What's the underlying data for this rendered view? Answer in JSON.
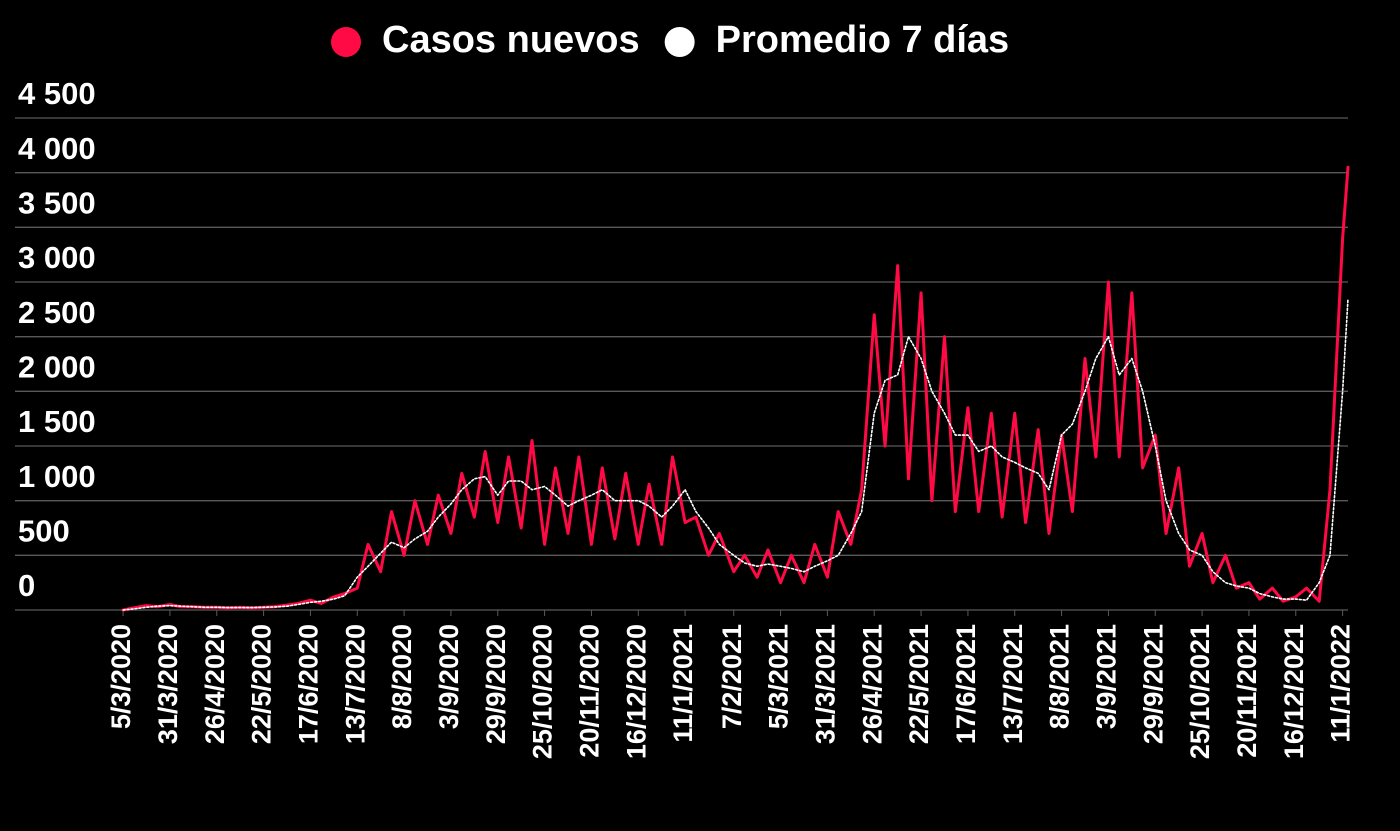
{
  "chart_data": {
    "type": "line",
    "x": [
      "5/3/2020",
      "11/3/2020",
      "18/3/2020",
      "24/3/2020",
      "31/3/2020",
      "6/4/2020",
      "13/4/2020",
      "19/4/2020",
      "26/4/2020",
      "2/5/2020",
      "9/5/2020",
      "15/5/2020",
      "22/5/2020",
      "28/5/2020",
      "4/6/2020",
      "10/6/2020",
      "17/6/2020",
      "23/6/2020",
      "30/6/2020",
      "6/7/2020",
      "13/7/2020",
      "19/7/2020",
      "26/7/2020",
      "1/8/2020",
      "8/8/2020",
      "14/8/2020",
      "21/8/2020",
      "27/8/2020",
      "3/9/2020",
      "9/9/2020",
      "16/9/2020",
      "22/9/2020",
      "29/9/2020",
      "5/10/2020",
      "12/10/2020",
      "18/10/2020",
      "25/10/2020",
      "31/10/2020",
      "7/11/2020",
      "13/11/2020",
      "20/11/2020",
      "26/11/2020",
      "3/12/2020",
      "9/12/2020",
      "16/12/2020",
      "22/12/2020",
      "29/12/2020",
      "4/1/2021",
      "11/1/2021",
      "17/1/2021",
      "24/1/2021",
      "30/1/2021",
      "7/2/2021",
      "13/2/2021",
      "20/2/2021",
      "26/2/2021",
      "5/3/2021",
      "11/3/2021",
      "18/3/2021",
      "24/3/2021",
      "31/3/2021",
      "6/4/2021",
      "13/4/2021",
      "19/4/2021",
      "26/4/2021",
      "2/5/2021",
      "9/5/2021",
      "15/5/2021",
      "22/5/2021",
      "28/5/2021",
      "4/6/2021",
      "10/6/2021",
      "17/6/2021",
      "23/6/2021",
      "30/6/2021",
      "6/7/2021",
      "13/7/2021",
      "19/7/2021",
      "26/7/2021",
      "1/8/2021",
      "8/8/2021",
      "14/8/2021",
      "21/8/2021",
      "27/8/2021",
      "3/9/2021",
      "9/9/2021",
      "16/9/2021",
      "22/9/2021",
      "29/9/2021",
      "5/10/2021",
      "12/10/2021",
      "18/10/2021",
      "25/10/2021",
      "31/10/2021",
      "7/11/2021",
      "13/11/2021",
      "20/11/2021",
      "26/11/2021",
      "3/12/2021",
      "9/12/2021",
      "16/12/2021",
      "22/12/2021",
      "29/12/2021",
      "4/1/2022",
      "11/1/2022",
      "14/1/2022"
    ],
    "series": [
      {
        "name": "Casos nuevos",
        "color": "#ff0a45",
        "style": "solid",
        "values": [
          0,
          20,
          40,
          30,
          50,
          30,
          30,
          25,
          25,
          20,
          25,
          20,
          25,
          30,
          45,
          60,
          90,
          60,
          120,
          150,
          200,
          600,
          350,
          900,
          500,
          1000,
          600,
          1050,
          700,
          1250,
          850,
          1450,
          800,
          1400,
          750,
          1550,
          600,
          1300,
          700,
          1400,
          600,
          1300,
          650,
          1250,
          600,
          1150,
          600,
          1400,
          800,
          850,
          500,
          700,
          350,
          500,
          300,
          550,
          250,
          500,
          250,
          600,
          300,
          900,
          600,
          1100,
          2700,
          1500,
          3150,
          1200,
          2900,
          1000,
          2500,
          900,
          1850,
          900,
          1800,
          850,
          1800,
          800,
          1650,
          700,
          1600,
          900,
          2300,
          1400,
          3000,
          1400,
          2900,
          1300,
          1600,
          700,
          1300,
          400,
          700,
          250,
          500,
          200,
          250,
          100,
          200,
          80,
          120,
          200,
          80,
          1100,
          3400,
          4050
        ]
      },
      {
        "name": "Promedio 7 días",
        "color": "#ffffff",
        "style": "dotted",
        "values": [
          0,
          10,
          25,
          35,
          40,
          35,
          30,
          25,
          25,
          22,
          22,
          22,
          25,
          28,
          35,
          50,
          70,
          80,
          100,
          130,
          300,
          400,
          520,
          620,
          570,
          650,
          720,
          850,
          970,
          1100,
          1200,
          1220,
          1050,
          1180,
          1180,
          1100,
          1130,
          1050,
          950,
          1000,
          1050,
          1100,
          1000,
          1000,
          1000,
          950,
          850,
          950,
          1100,
          900,
          750,
          600,
          500,
          430,
          400,
          420,
          400,
          380,
          350,
          400,
          450,
          500,
          700,
          900,
          1800,
          2100,
          2150,
          2500,
          2300,
          2000,
          1800,
          1600,
          1600,
          1450,
          1500,
          1400,
          1350,
          1300,
          1250,
          1100,
          1600,
          1700,
          2000,
          2300,
          2500,
          2150,
          2300,
          2000,
          1500,
          1000,
          700,
          550,
          500,
          350,
          250,
          220,
          200,
          150,
          120,
          100,
          100,
          90,
          250,
          500,
          2000,
          2850
        ]
      }
    ],
    "xlim": [
      "5/1/2020",
      "14/1/2022"
    ],
    "xticks": [
      "5/3/2020",
      "31/3/2020",
      "26/4/2020",
      "22/5/2020",
      "17/6/2020",
      "13/7/2020",
      "8/8/2020",
      "3/9/2020",
      "29/9/2020",
      "25/10/2020",
      "20/11/2020",
      "16/12/2020",
      "11/1/2021",
      "7/2/2021",
      "5/3/2021",
      "31/3/2021",
      "26/4/2021",
      "22/5/2021",
      "17/6/2021",
      "13/7/2021",
      "8/8/2021",
      "3/9/2021",
      "29/9/2021",
      "25/10/2021",
      "20/11/2021",
      "16/12/2021",
      "11/1/2022"
    ],
    "ylim": [
      0,
      4500
    ],
    "yticks": [
      0,
      500,
      {
        "value": 1000,
        "label": "1 000"
      },
      {
        "value": 1500,
        "label": "1 500"
      },
      {
        "value": 2000,
        "label": "2 000"
      },
      {
        "value": 2500,
        "label": "2 500"
      },
      {
        "value": 3000,
        "label": "3 000"
      },
      {
        "value": 3500,
        "label": "3 500"
      },
      {
        "value": 4000,
        "label": "4 000"
      },
      {
        "value": 4500,
        "label": "4 500"
      }
    ],
    "grid": true,
    "legend": "top"
  }
}
